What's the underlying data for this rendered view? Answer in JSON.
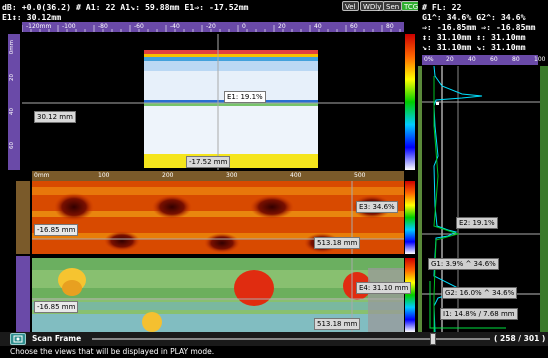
{
  "top": {
    "line1": "dB: +0.0(36.2)  # A1: 22  A1↘: 59.88mm  E1⇒: -17.52mm",
    "line2": "E1↕: 30.12mm",
    "buttons": [
      "Vel",
      "WDly",
      "Sen",
      "TCG"
    ]
  },
  "right_panel": {
    "lines": [
      "# FL: 22",
      "G1^: 34.6%  G2^: 34.6%",
      "⇒: -16.85mm  ⇒: -16.85mm",
      "↕: 31.10mm  ↕: 31.10mm",
      "↘: 31.10mm  ↘: 31.10mm"
    ],
    "ruler_ticks": [
      "0%",
      "20",
      "40",
      "60",
      "80",
      "100"
    ],
    "gate_labels": [
      "E2: 19.1%",
      "G1: 3.9% ^ 34.6%",
      "G2: 16.0% ^ 34.6%",
      "I1: 14.8% / 7.68 mm"
    ]
  },
  "bscan": {
    "ruler_ticks": [
      "-120mm",
      "-100",
      "-80",
      "-60",
      "-40",
      "-20",
      "0",
      "20",
      "40",
      "60",
      "80"
    ],
    "depth_ticks": [
      "0mm",
      "20",
      "40",
      "60"
    ],
    "cursor_depth": "30.12 mm",
    "cursor_index": "-17.52 mm",
    "echo_label": "E1: 19.1%"
  },
  "cscan1": {
    "ruler_ticks": [
      "0mm",
      "100",
      "200",
      "300",
      "400",
      "500"
    ],
    "cursor_index": "-16.85 mm",
    "cursor_scan": "513.18 mm",
    "echo_label": "E3: 34.6%"
  },
  "cscan2": {
    "cursor_index": "-16.85 mm",
    "cursor_scan": "513.18 mm",
    "echo_label": "E4: 31.10 mm"
  },
  "bottom": {
    "scan_label": "Scan Frame",
    "frame_counter": "( 258 / 301 )",
    "frame_progress": 0.857
  },
  "hint": "Choose the views that will be displayed in PLAY mode.",
  "colors": {
    "ruler_purple": "#6a4aa8",
    "ruler_brown": "#7a5a2a",
    "tcg_green": "#2fae2f"
  }
}
